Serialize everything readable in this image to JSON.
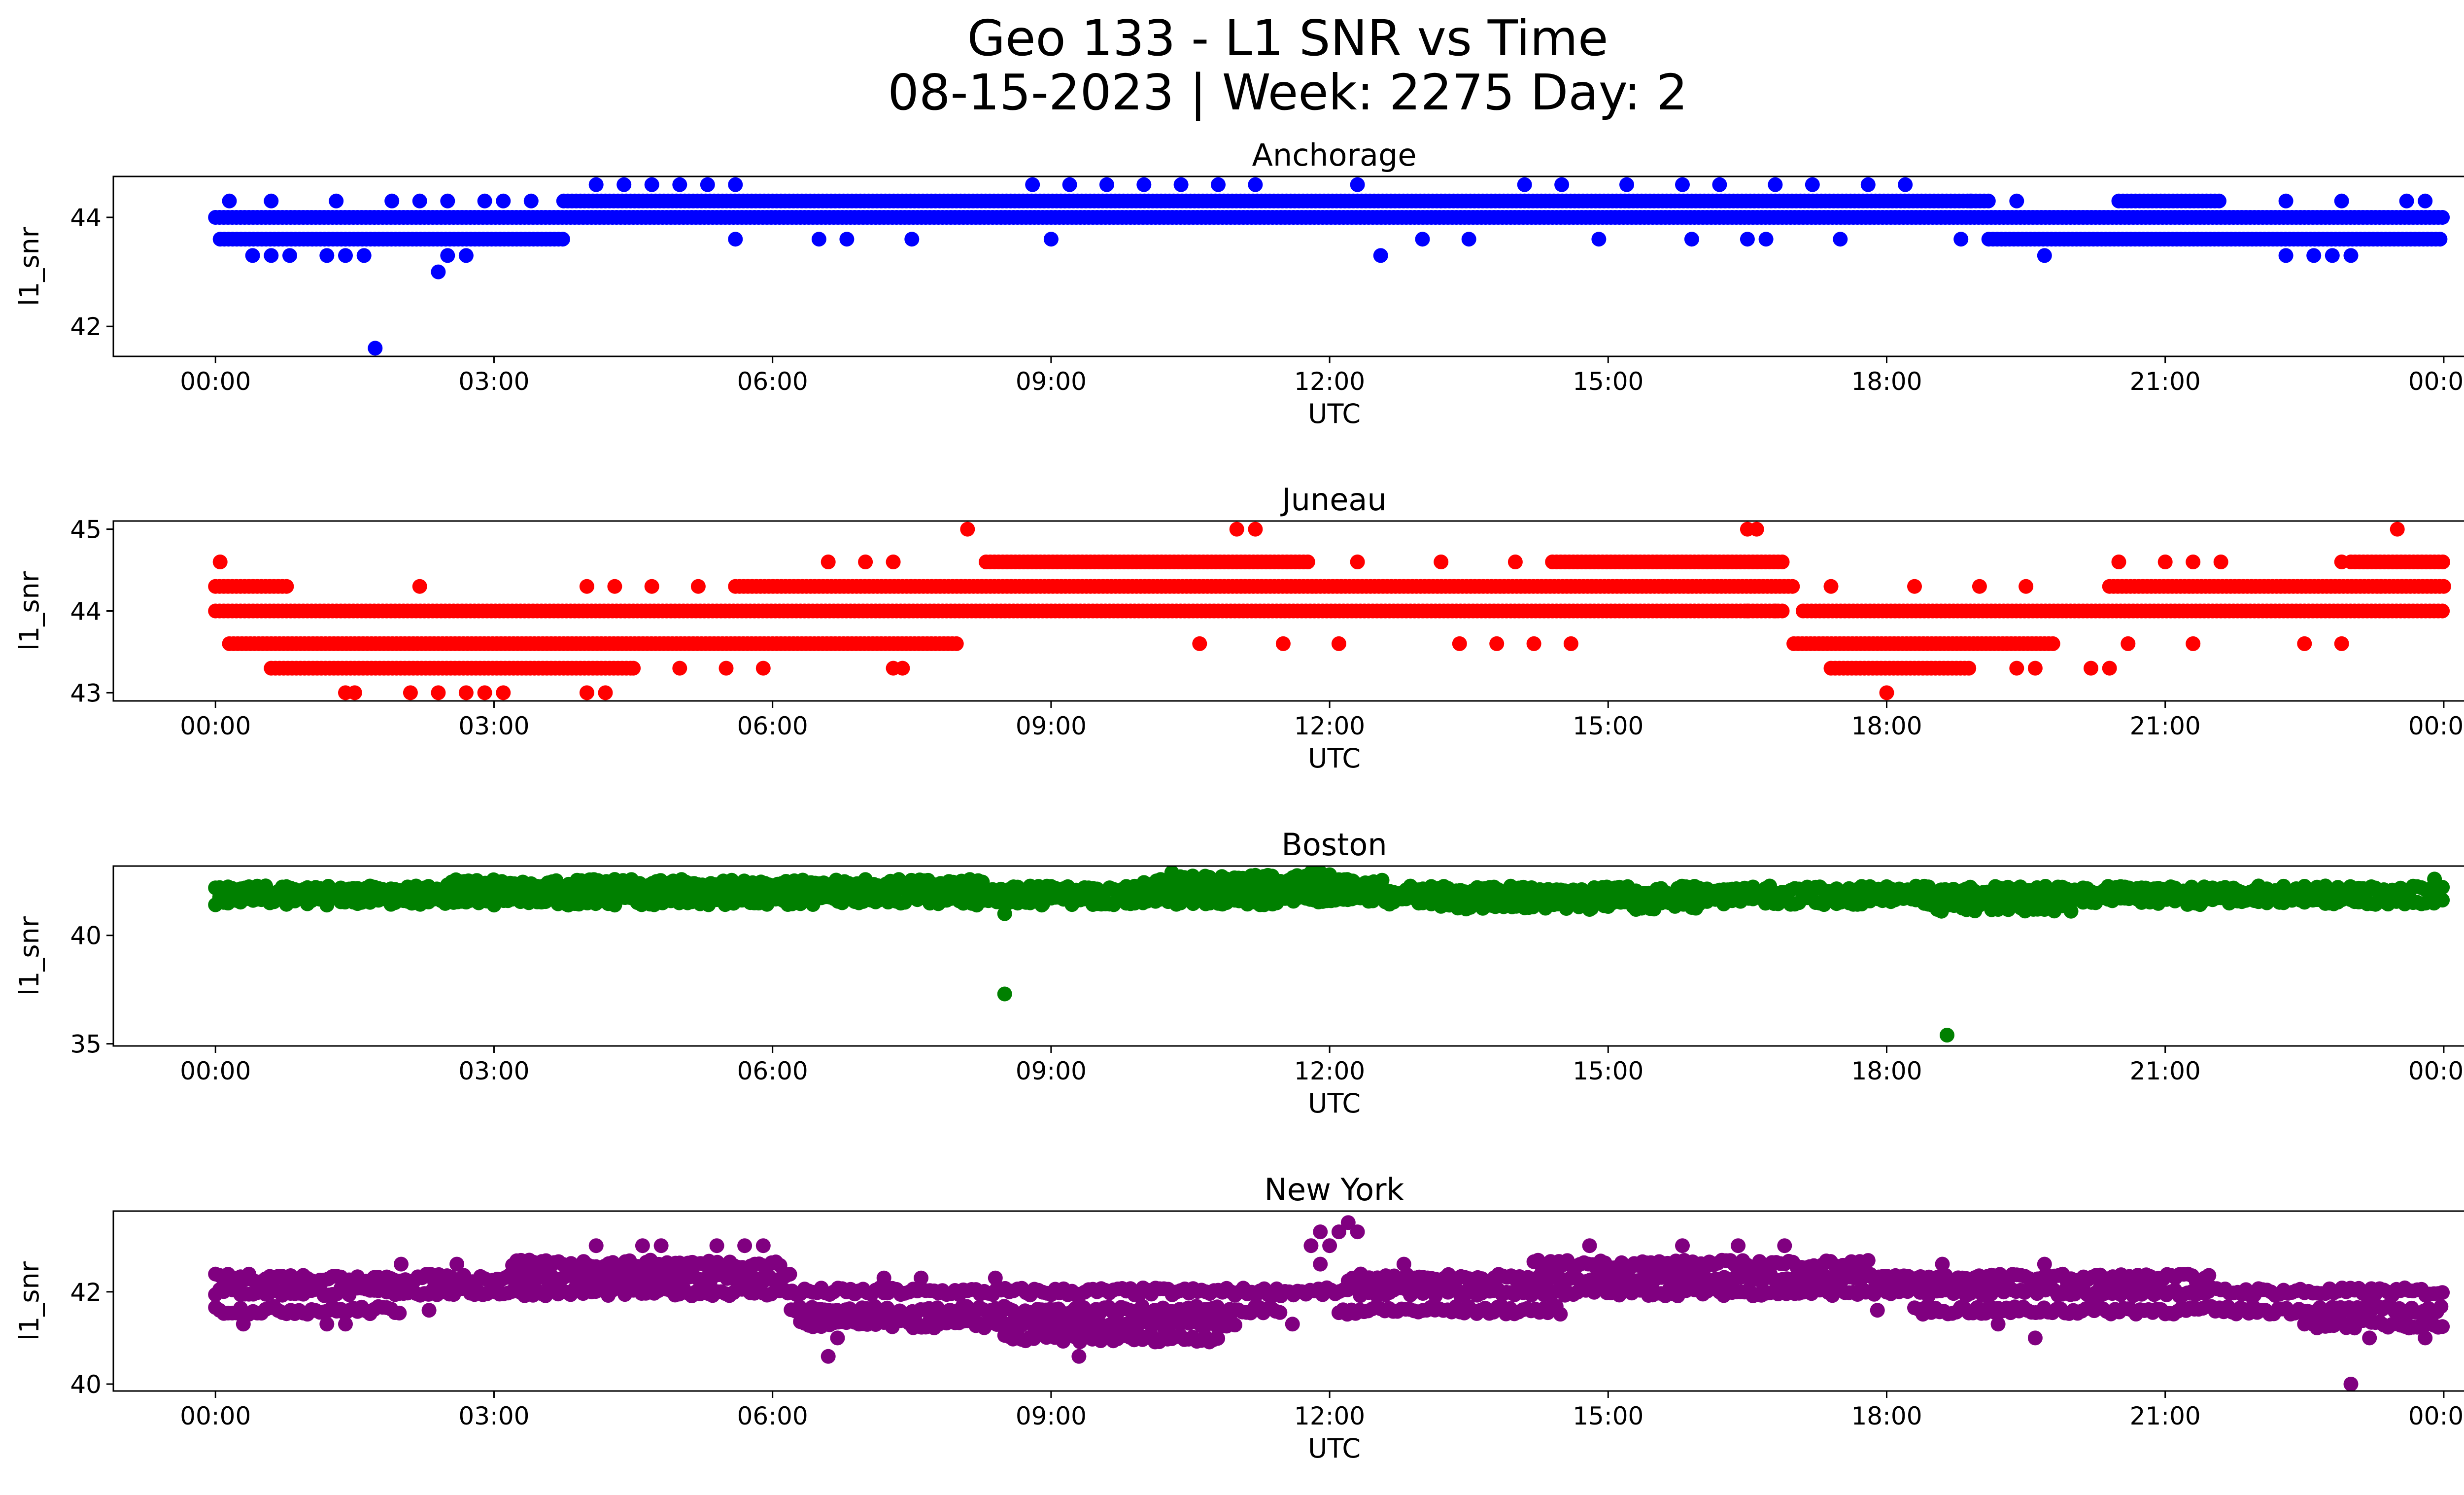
{
  "figure": {
    "title_line1": "Geo 133 - L1 SNR vs Time",
    "title_line2": "08-15-2023 | Week: 2275 Day: 2"
  },
  "chart_data": [
    {
      "type": "scatter",
      "title": "Anchorage",
      "xlabel": "UTC",
      "ylabel": "l1_snr",
      "color": "#0000ff",
      "xlim_hours": [
        -1.1,
        25.2
      ],
      "ylim": [
        41.45,
        44.75
      ],
      "yticks": [
        42,
        44
      ],
      "xtick_labels": [
        "00:00",
        "03:00",
        "06:00",
        "09:00",
        "12:00",
        "15:00",
        "18:00",
        "21:00",
        "00:00"
      ],
      "y_levels": [
        41.6,
        43.0,
        43.3,
        43.6,
        44.0,
        44.3,
        44.6
      ],
      "bands": [
        {
          "y": 44.0,
          "from": 0.0,
          "to": 24.0
        },
        {
          "y": 43.6,
          "from": 0.05,
          "to": 3.75
        },
        {
          "y": 44.3,
          "from": 3.75,
          "to": 19.1
        },
        {
          "y": 43.6,
          "from": 19.1,
          "to": 24.0
        },
        {
          "y": 44.3,
          "from": 20.5,
          "to": 21.6
        }
      ],
      "points": [
        [
          1.72,
          41.6
        ],
        [
          2.4,
          43.0
        ],
        [
          12.55,
          43.3
        ],
        [
          19.7,
          43.3
        ],
        [
          15.9,
          43.6
        ],
        [
          0.4,
          43.3
        ],
        [
          0.6,
          43.3
        ],
        [
          0.8,
          43.3
        ],
        [
          1.2,
          43.3
        ],
        [
          1.4,
          43.3
        ],
        [
          1.6,
          43.3
        ],
        [
          2.5,
          43.3
        ],
        [
          2.7,
          43.3
        ],
        [
          22.3,
          43.3
        ],
        [
          22.6,
          43.3
        ],
        [
          22.8,
          43.3
        ],
        [
          23.0,
          43.3
        ],
        [
          0.15,
          44.3
        ],
        [
          0.6,
          44.3
        ],
        [
          1.3,
          44.3
        ],
        [
          1.9,
          44.3
        ],
        [
          2.2,
          44.3
        ],
        [
          2.5,
          44.3
        ],
        [
          2.9,
          44.3
        ],
        [
          3.1,
          44.3
        ],
        [
          3.4,
          44.3
        ],
        [
          18.9,
          44.3
        ],
        [
          19.4,
          44.3
        ],
        [
          22.3,
          44.3
        ],
        [
          22.9,
          44.3
        ],
        [
          23.6,
          44.3
        ],
        [
          23.8,
          44.3
        ],
        [
          4.1,
          44.6
        ],
        [
          4.4,
          44.6
        ],
        [
          4.7,
          44.6
        ],
        [
          5.0,
          44.6
        ],
        [
          5.3,
          44.6
        ],
        [
          5.6,
          44.6
        ],
        [
          8.8,
          44.6
        ],
        [
          9.2,
          44.6
        ],
        [
          9.6,
          44.6
        ],
        [
          10.0,
          44.6
        ],
        [
          10.4,
          44.6
        ],
        [
          10.8,
          44.6
        ],
        [
          11.2,
          44.6
        ],
        [
          12.3,
          44.6
        ],
        [
          14.1,
          44.6
        ],
        [
          14.5,
          44.6
        ],
        [
          15.2,
          44.6
        ],
        [
          15.8,
          44.6
        ],
        [
          16.2,
          44.6
        ],
        [
          16.8,
          44.6
        ],
        [
          17.2,
          44.6
        ],
        [
          17.8,
          44.6
        ],
        [
          18.2,
          44.6
        ],
        [
          5.6,
          43.6
        ],
        [
          6.5,
          43.6
        ],
        [
          6.8,
          43.6
        ],
        [
          7.5,
          43.6
        ],
        [
          9.0,
          43.6
        ],
        [
          13.0,
          43.6
        ],
        [
          13.5,
          43.6
        ],
        [
          14.9,
          43.6
        ],
        [
          16.5,
          43.6
        ],
        [
          16.7,
          43.6
        ],
        [
          17.5,
          43.6
        ],
        [
          18.8,
          43.6
        ]
      ]
    },
    {
      "type": "scatter",
      "title": "Juneau",
      "xlabel": "UTC",
      "ylabel": "l1_snr",
      "color": "#ff0000",
      "xlim_hours": [
        -1.1,
        25.2
      ],
      "ylim": [
        42.9,
        45.1
      ],
      "yticks": [
        43,
        44,
        45
      ],
      "xtick_labels": [
        "00:00",
        "03:00",
        "06:00",
        "09:00",
        "12:00",
        "15:00",
        "18:00",
        "21:00",
        "00:00"
      ],
      "y_levels": [
        43.0,
        43.3,
        43.6,
        44.0,
        44.3,
        44.6,
        45.0
      ],
      "bands": [
        {
          "y": 44.0,
          "from": 0.0,
          "to": 16.9
        },
        {
          "y": 44.0,
          "from": 17.1,
          "to": 24.0
        },
        {
          "y": 44.3,
          "from": 0.0,
          "to": 0.8
        },
        {
          "y": 43.6,
          "from": 0.15,
          "to": 8.0
        },
        {
          "y": 43.3,
          "from": 0.6,
          "to": 4.5
        },
        {
          "y": 44.3,
          "from": 5.6,
          "to": 17.0
        },
        {
          "y": 44.6,
          "from": 8.3,
          "to": 11.8
        },
        {
          "y": 44.6,
          "from": 14.4,
          "to": 16.9
        },
        {
          "y": 43.6,
          "from": 17.0,
          "to": 19.8
        },
        {
          "y": 43.3,
          "from": 17.4,
          "to": 18.9
        },
        {
          "y": 44.3,
          "from": 20.4,
          "to": 24.0
        },
        {
          "y": 44.6,
          "from": 23.0,
          "to": 24.0
        }
      ],
      "points": [
        [
          1.4,
          43.0
        ],
        [
          1.5,
          43.0
        ],
        [
          2.1,
          43.0
        ],
        [
          2.4,
          43.0
        ],
        [
          2.7,
          43.0
        ],
        [
          2.9,
          43.0
        ],
        [
          3.1,
          43.0
        ],
        [
          4.0,
          43.0
        ],
        [
          4.2,
          43.0
        ],
        [
          18.0,
          43.0
        ],
        [
          8.1,
          45.0
        ],
        [
          11.0,
          45.0
        ],
        [
          11.2,
          45.0
        ],
        [
          16.5,
          45.0
        ],
        [
          16.6,
          45.0
        ],
        [
          23.5,
          45.0
        ],
        [
          0.05,
          44.6
        ],
        [
          6.6,
          44.6
        ],
        [
          7.0,
          44.6
        ],
        [
          7.3,
          44.6
        ],
        [
          12.3,
          44.6
        ],
        [
          13.2,
          44.6
        ],
        [
          14.0,
          44.6
        ],
        [
          20.5,
          44.6
        ],
        [
          21.0,
          44.6
        ],
        [
          21.3,
          44.6
        ],
        [
          21.6,
          44.6
        ],
        [
          22.9,
          44.6
        ],
        [
          4.5,
          43.3
        ],
        [
          5.0,
          43.3
        ],
        [
          5.5,
          43.3
        ],
        [
          5.9,
          43.3
        ],
        [
          7.3,
          43.3
        ],
        [
          7.4,
          43.3
        ],
        [
          19.4,
          43.3
        ],
        [
          19.6,
          43.3
        ],
        [
          20.2,
          43.3
        ],
        [
          20.4,
          43.3
        ],
        [
          10.6,
          43.6
        ],
        [
          11.5,
          43.6
        ],
        [
          12.1,
          43.6
        ],
        [
          13.4,
          43.6
        ],
        [
          13.8,
          43.6
        ],
        [
          14.2,
          43.6
        ],
        [
          14.6,
          43.6
        ],
        [
          20.6,
          43.6
        ],
        [
          21.3,
          43.6
        ],
        [
          22.5,
          43.6
        ],
        [
          22.9,
          43.6
        ],
        [
          2.2,
          44.3
        ],
        [
          4.0,
          44.3
        ],
        [
          4.3,
          44.3
        ],
        [
          4.7,
          44.3
        ],
        [
          5.2,
          44.3
        ],
        [
          17.4,
          44.3
        ],
        [
          18.3,
          44.3
        ],
        [
          19.0,
          44.3
        ],
        [
          19.5,
          44.3
        ],
        [
          16.8,
          44.0
        ],
        [
          16.5,
          44.0
        ]
      ]
    },
    {
      "type": "scatter",
      "title": "Boston",
      "xlabel": "UTC",
      "ylabel": "l1_snr",
      "color": "#008000",
      "xlim_hours": [
        -1.1,
        25.2
      ],
      "ylim": [
        34.9,
        43.2
      ],
      "yticks": [
        35,
        40
      ],
      "xtick_labels": [
        "00:00",
        "03:00",
        "06:00",
        "09:00",
        "12:00",
        "15:00",
        "18:00",
        "21:00",
        "00:00"
      ],
      "bands": [
        {
          "y": 41.6,
          "from": 0.0,
          "to": 24.0
        },
        {
          "y": 42.1,
          "from": 0.0,
          "to": 24.0
        },
        {
          "y": 42.4,
          "from": 2.5,
          "to": 8.3
        },
        {
          "y": 42.4,
          "from": 10.0,
          "to": 12.6
        },
        {
          "y": 42.6,
          "from": 10.3,
          "to": 12.2
        },
        {
          "y": 41.3,
          "from": 18.5,
          "to": 20.0
        },
        {
          "y": 41.4,
          "from": 13.2,
          "to": 16.0
        }
      ],
      "points": [
        [
          8.5,
          37.3
        ],
        [
          8.5,
          41.0
        ],
        [
          18.65,
          35.4
        ],
        [
          10.3,
          42.9
        ],
        [
          11.8,
          42.9
        ],
        [
          11.9,
          42.9
        ],
        [
          12.0,
          42.8
        ],
        [
          14.8,
          41.2
        ],
        [
          15.3,
          41.2
        ],
        [
          19.2,
          41.2
        ],
        [
          19.7,
          41.2
        ],
        [
          23.9,
          42.6
        ],
        [
          1.2,
          41.4
        ],
        [
          3.0,
          41.4
        ],
        [
          3.8,
          41.4
        ],
        [
          4.3,
          41.4
        ],
        [
          8.2,
          41.4
        ],
        [
          8.9,
          41.4
        ]
      ]
    },
    {
      "type": "scatter",
      "title": "New York",
      "xlabel": "UTC",
      "ylabel": "l1_snr",
      "color": "#800080",
      "xlim_hours": [
        -1.1,
        25.2
      ],
      "ylim": [
        39.85,
        43.75
      ],
      "yticks": [
        40,
        42
      ],
      "xtick_labels": [
        "00:00",
        "03:00",
        "06:00",
        "09:00",
        "12:00",
        "15:00",
        "18:00",
        "21:00",
        "00:00"
      ],
      "bands": [
        {
          "y": 42.3,
          "from": 0.0,
          "to": 2.0
        },
        {
          "y": 42.0,
          "from": 0.0,
          "to": 24.0
        },
        {
          "y": 41.6,
          "from": 0.0,
          "to": 2.0
        },
        {
          "y": 42.3,
          "from": 2.0,
          "to": 6.2
        },
        {
          "y": 42.6,
          "from": 3.2,
          "to": 6.1
        },
        {
          "y": 41.6,
          "from": 6.2,
          "to": 11.5
        },
        {
          "y": 41.3,
          "from": 6.3,
          "to": 11.0
        },
        {
          "y": 41.0,
          "from": 8.5,
          "to": 10.8
        },
        {
          "y": 42.3,
          "from": 12.2,
          "to": 21.5
        },
        {
          "y": 42.6,
          "from": 14.2,
          "to": 17.8
        },
        {
          "y": 41.6,
          "from": 12.1,
          "to": 14.5
        },
        {
          "y": 41.6,
          "from": 18.3,
          "to": 24.0
        },
        {
          "y": 41.3,
          "from": 22.5,
          "to": 24.0
        }
      ],
      "points": [
        [
          0.3,
          41.3
        ],
        [
          1.2,
          41.3
        ],
        [
          1.4,
          41.3
        ],
        [
          2.3,
          41.6
        ],
        [
          2.0,
          42.6
        ],
        [
          2.6,
          42.6
        ],
        [
          4.1,
          43.0
        ],
        [
          4.6,
          43.0
        ],
        [
          4.8,
          43.0
        ],
        [
          5.4,
          43.0
        ],
        [
          5.7,
          43.0
        ],
        [
          5.9,
          43.0
        ],
        [
          6.6,
          40.6
        ],
        [
          6.7,
          41.0
        ],
        [
          9.3,
          40.6
        ],
        [
          11.8,
          43.0
        ],
        [
          11.9,
          43.3
        ],
        [
          12.1,
          43.3
        ],
        [
          12.2,
          43.5
        ],
        [
          12.3,
          43.3
        ],
        [
          12.0,
          43.0
        ],
        [
          11.9,
          42.6
        ],
        [
          11.6,
          41.3
        ],
        [
          14.8,
          43.0
        ],
        [
          15.8,
          43.0
        ],
        [
          16.4,
          43.0
        ],
        [
          16.9,
          43.0
        ],
        [
          19.6,
          41.0
        ],
        [
          19.2,
          41.3
        ],
        [
          23.0,
          40.0
        ],
        [
          23.2,
          41.0
        ],
        [
          23.8,
          41.0
        ],
        [
          17.9,
          41.6
        ],
        [
          18.6,
          42.6
        ],
        [
          19.7,
          42.6
        ],
        [
          7.2,
          42.3
        ],
        [
          7.6,
          42.3
        ],
        [
          8.4,
          42.3
        ],
        [
          12.8,
          42.6
        ]
      ]
    }
  ]
}
